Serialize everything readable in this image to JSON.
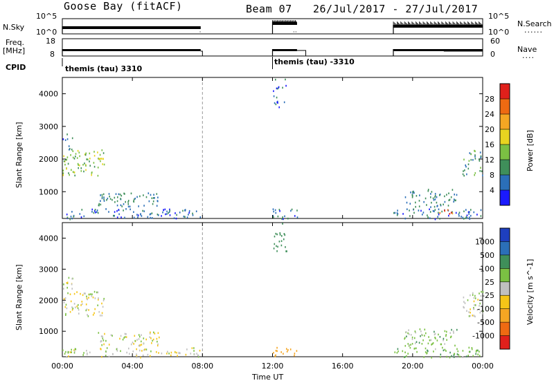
{
  "header": {
    "station": "Goose Bay (fitACF)",
    "beam": "Beam 07",
    "date_range": "26/Jul/2017 - 27/Jul/2017"
  },
  "panels": {
    "nsky": {
      "label": "N.Sky",
      "ticks": [
        "10^5",
        "10^0"
      ],
      "right_label": "N.Search",
      "right_ticks": [
        "10^5",
        "10^0"
      ],
      "right_dots": "......"
    },
    "freq": {
      "label_top": "Freq.",
      "label_unit": "[MHz]",
      "ticks": [
        "18",
        "8"
      ],
      "right_label": "Nave",
      "right_ticks": [
        "60",
        "0"
      ],
      "right_dots": "...."
    },
    "cpid": {
      "label": "CPID",
      "entries": [
        "themis (tau) 3310",
        "themis (tau) -3310"
      ]
    }
  },
  "power_colorbar": {
    "label": "Power [dB]",
    "ticks": [
      "28",
      "24",
      "20",
      "16",
      "12",
      "8",
      "4"
    ],
    "colors": [
      "#e0201b",
      "#ee6a12",
      "#f5a623",
      "#e8d420",
      "#7bc043",
      "#3f8f5a",
      "#2b6fb8",
      "#1a1aff"
    ]
  },
  "velocity_colorbar": {
    "label": "Velocity [m s^-1]",
    "ticks": [
      "1000",
      "500",
      "100",
      "25",
      "-25",
      "-100",
      "-500",
      "-1000"
    ],
    "colors": [
      "#1e3fbf",
      "#2b6fb8",
      "#3f8f5a",
      "#7bc043",
      "#c0c0c0",
      "#f5c518",
      "#f5a623",
      "#ee6a12",
      "#e0201b"
    ]
  },
  "time_axis": {
    "ticks": [
      "00:00",
      "04:00",
      "08:00",
      "12:00",
      "16:00",
      "20:00",
      "00:00"
    ],
    "label": "Time UT"
  },
  "chart_data": {
    "type": "heatmap",
    "title": "Goose Bay (fitACF) Beam 07 26/Jul/2017 - 27/Jul/2017",
    "xlabel": "Time UT",
    "ylabel": "Slant Range [km]",
    "xlim": [
      0,
      24
    ],
    "ylim": [
      180,
      4500
    ],
    "ytick_values": [
      1000,
      2000,
      3000,
      4000
    ],
    "xtick_values": [
      0,
      4,
      8,
      12,
      16,
      20,
      24
    ],
    "data_gaps_hours": [
      [
        7.9,
        12.0
      ],
      [
        13.4,
        18.9
      ]
    ],
    "panels": [
      {
        "name": "Power [dB]",
        "regions": [
          {
            "t": [
              0.0,
              7.9
            ],
            "r": [
              180,
              500
            ],
            "value": 6
          },
          {
            "t": [
              0.0,
              2.4
            ],
            "r": [
              1500,
              2300
            ],
            "value": 14
          },
          {
            "t": [
              0.0,
              0.6
            ],
            "r": [
              2300,
              2800
            ],
            "value": 6
          },
          {
            "t": [
              2.0,
              5.5
            ],
            "r": [
              550,
              1000
            ],
            "value": 8
          },
          {
            "t": [
              12.0,
              13.4
            ],
            "r": [
              180,
              500
            ],
            "value": 6
          },
          {
            "t": [
              12.0,
              12.8
            ],
            "r": [
              3600,
              4500
            ],
            "value": 6
          },
          {
            "t": [
              18.9,
              24.0
            ],
            "r": [
              180,
              500
            ],
            "value": 6
          },
          {
            "t": [
              21.5,
              22.5
            ],
            "r": [
              300,
              500
            ],
            "value": 26
          },
          {
            "t": [
              22.8,
              24.0
            ],
            "r": [
              1500,
              2300
            ],
            "value": 10
          },
          {
            "t": [
              19.5,
              22.5
            ],
            "r": [
              550,
              1100
            ],
            "value": 8
          }
        ]
      },
      {
        "name": "Velocity [m s^-1]",
        "regions": [
          {
            "t": [
              0.0,
              7.9
            ],
            "r": [
              180,
              500
            ],
            "value": 0
          },
          {
            "t": [
              0.0,
              2.4
            ],
            "r": [
              1500,
              2300
            ],
            "value": 0
          },
          {
            "t": [
              0.0,
              0.6
            ],
            "r": [
              2300,
              2800
            ],
            "value": 0
          },
          {
            "t": [
              2.0,
              5.5
            ],
            "r": [
              550,
              1000
            ],
            "value": 0
          },
          {
            "t": [
              12.0,
              13.4
            ],
            "r": [
              180,
              500
            ],
            "value": -200
          },
          {
            "t": [
              12.0,
              12.8
            ],
            "r": [
              3600,
              4500
            ],
            "value": 300
          },
          {
            "t": [
              18.9,
              24.0
            ],
            "r": [
              180,
              500
            ],
            "value": 80
          },
          {
            "t": [
              22.8,
              24.0
            ],
            "r": [
              1500,
              2300
            ],
            "value": 0
          },
          {
            "t": [
              19.5,
              22.5
            ],
            "r": [
              550,
              1100
            ],
            "value": 60
          }
        ]
      }
    ]
  }
}
